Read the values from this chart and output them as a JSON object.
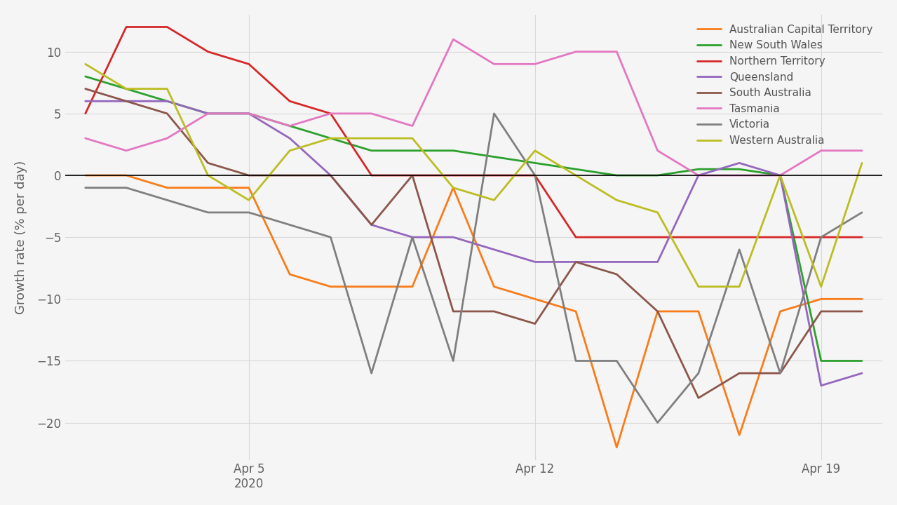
{
  "ylabel": "Growth rate (% per day)",
  "background_color": "#f5f5f5",
  "grid_color": "#d8d8d8",
  "x_tick_labels": [
    "Apr 5\n2020",
    "Apr 12",
    "Apr 19"
  ],
  "x_tick_positions": [
    4,
    11,
    18
  ],
  "ylim": [
    -23,
    13
  ],
  "xlim": [
    -0.5,
    19.5
  ],
  "series": {
    "Australian Capital Territory": {
      "color": "#f97c1a",
      "data": [
        0,
        0,
        -1,
        -1,
        -1,
        -8,
        -9,
        -9,
        -9,
        -1,
        -9,
        -10,
        -11,
        -22,
        -11,
        -11,
        -21,
        -11,
        -10,
        -10
      ]
    },
    "New South Wales": {
      "color": "#2ca02c",
      "data": [
        8,
        7,
        6,
        5,
        5,
        4,
        3,
        2,
        2,
        2,
        1.5,
        1,
        0.5,
        0,
        0,
        0.5,
        0.5,
        0,
        -15,
        -15
      ]
    },
    "Northern Territory": {
      "color": "#d62728",
      "data": [
        5,
        12,
        12,
        10,
        9,
        6,
        5,
        0,
        0,
        0,
        0,
        0,
        -5,
        -5,
        -5,
        -5,
        -5,
        -5,
        -5,
        -5
      ]
    },
    "Queensland": {
      "color": "#9467bd",
      "data": [
        6,
        6,
        6,
        5,
        5,
        3,
        0,
        -4,
        -5,
        -5,
        -6,
        -7,
        -7,
        -7,
        -7,
        0,
        1,
        0,
        -17,
        -16
      ]
    },
    "South Australia": {
      "color": "#8c564b",
      "data": [
        7,
        6,
        5,
        1,
        0,
        0,
        0,
        -4,
        0,
        -11,
        -11,
        -12,
        -7,
        -8,
        -11,
        -18,
        -16,
        -16,
        -11,
        -11
      ]
    },
    "Tasmania": {
      "color": "#e377c2",
      "data": [
        3,
        2,
        3,
        5,
        5,
        4,
        5,
        5,
        4,
        11,
        9,
        9,
        10,
        10,
        2,
        0,
        0,
        0,
        2,
        2
      ]
    },
    "Victoria": {
      "color": "#7f7f7f",
      "data": [
        -1,
        -1,
        -2,
        -3,
        -3,
        -4,
        -5,
        -16,
        -5,
        -15,
        5,
        0,
        -15,
        -15,
        -20,
        -16,
        -6,
        -16,
        -5,
        -3
      ]
    },
    "Western Australia": {
      "color": "#bcbd22",
      "data": [
        9,
        7,
        7,
        0,
        -2,
        2,
        3,
        3,
        3,
        -1,
        -2,
        2,
        0,
        -2,
        -3,
        -9,
        -9,
        0,
        -9,
        1
      ]
    }
  }
}
